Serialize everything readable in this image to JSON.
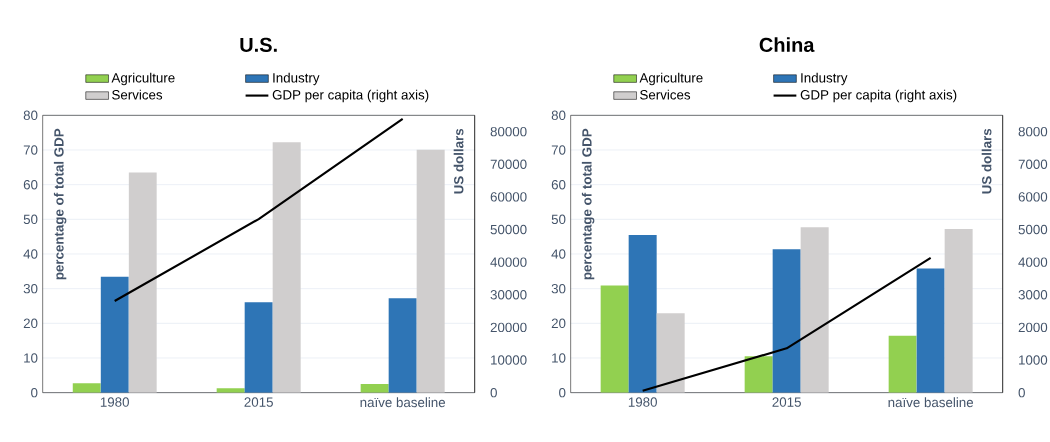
{
  "chart_data": [
    {
      "type": "bar",
      "title": "U.S.",
      "categories": [
        "1980",
        "2015",
        "naïve baseline"
      ],
      "ylabel": "percentage of total GDP",
      "y2label": "US dollars",
      "series": [
        {
          "name": "Agriculture",
          "color": "#92d050",
          "values": [
            2.7,
            1.3,
            2.5
          ]
        },
        {
          "name": "Industry",
          "color": "#2e75b6",
          "values": [
            33.4,
            26.1,
            27.2
          ]
        },
        {
          "name": "Services",
          "color": "#d0cece",
          "values": [
            63.5,
            72.2,
            70.1
          ]
        },
        {
          "name": "GDP per capita (right axis)",
          "type": "line",
          "axis": "y2",
          "color": "#000000",
          "values": [
            28100,
            53200,
            83900
          ]
        }
      ],
      "ylim": [
        0,
        80
      ],
      "yticks": [
        0,
        10,
        20,
        30,
        40,
        50,
        60,
        70,
        80
      ],
      "y2lim": [
        0,
        85000
      ],
      "y2ticks": [
        0,
        10000,
        20000,
        30000,
        40000,
        50000,
        60000,
        70000,
        80000
      ],
      "grid": "y",
      "legend": "top"
    },
    {
      "type": "bar",
      "title": "China",
      "categories": [
        "1980",
        "2015",
        "naïve baseline"
      ],
      "ylabel": "percentage of total GDP",
      "y2label": "US dollars",
      "series": [
        {
          "name": "Agriculture",
          "color": "#92d050",
          "values": [
            30.9,
            10.5,
            16.4
          ]
        },
        {
          "name": "Industry",
          "color": "#2e75b6",
          "values": [
            45.5,
            41.4,
            35.8
          ]
        },
        {
          "name": "Services",
          "color": "#d0cece",
          "values": [
            22.9,
            47.7,
            47.2
          ]
        },
        {
          "name": "GDP per capita (right axis)",
          "type": "line",
          "axis": "y2",
          "color": "#000000",
          "values": [
            60,
            1360,
            4130
          ]
        }
      ],
      "ylim": [
        0,
        80
      ],
      "yticks": [
        0,
        10,
        20,
        30,
        40,
        50,
        60,
        70,
        80
      ],
      "y2lim": [
        0,
        8500
      ],
      "y2ticks": [
        0,
        1000,
        2000,
        3000,
        4000,
        5000,
        6000,
        7000,
        8000
      ],
      "grid": "y",
      "legend": "top"
    }
  ]
}
